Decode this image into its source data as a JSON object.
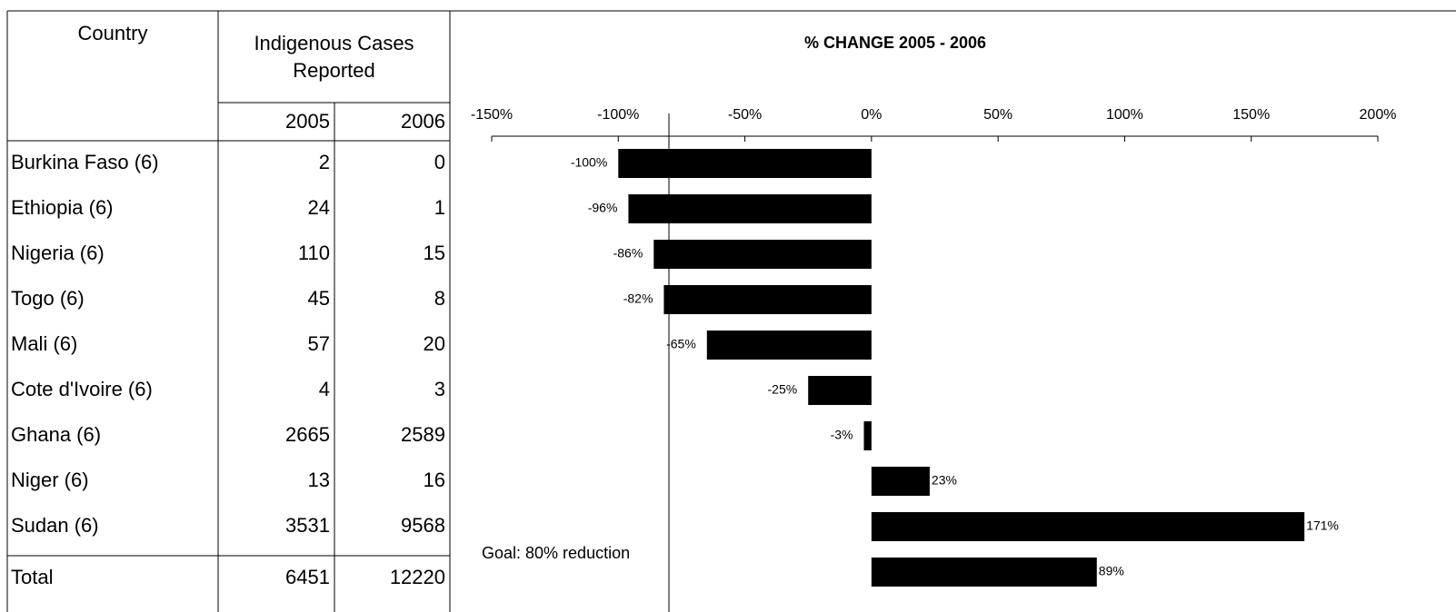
{
  "table": {
    "headers": [
      "Country",
      "Indigenous Cases Reported",
      "2005",
      "2006"
    ],
    "rows": [
      [
        "Burkina Faso (6)",
        2,
        0
      ],
      [
        "Ethiopia (6)",
        24,
        1
      ],
      [
        "Nigeria (6)",
        110,
        15
      ],
      [
        "Togo (6)",
        45,
        8
      ],
      [
        "Mali (6)",
        57,
        20
      ],
      [
        "Cote d'Ivoire (6)",
        4,
        3
      ],
      [
        "Ghana (6)",
        2665,
        2589
      ],
      [
        "Niger (6)",
        13,
        16
      ],
      [
        "Sudan (6)",
        3531,
        9568
      ]
    ],
    "total": [
      "Total",
      6451,
      12220
    ]
  },
  "chart_data": {
    "type": "bar",
    "orientation": "horizontal",
    "title": "% CHANGE 2005 - 2006",
    "values": [
      -100,
      -96,
      -86,
      -82,
      -65,
      -25,
      -3,
      23,
      171,
      89
    ],
    "value_labels": [
      "-100%",
      "-96%",
      "-86%",
      "-82%",
      "-65%",
      "-25%",
      "-3%",
      "23%",
      "171%",
      "89%"
    ],
    "color": "#000000",
    "xlim": [
      -150,
      200
    ],
    "xticks": [
      {
        "value": -150,
        "label": "-150%"
      },
      {
        "value": -100,
        "label": "-100%"
      },
      {
        "value": -50,
        "label": "-50%"
      },
      {
        "value": 0,
        "label": "0%"
      },
      {
        "value": 50,
        "label": "50%"
      },
      {
        "value": 100,
        "label": "100%"
      },
      {
        "value": 150,
        "label": "150%"
      },
      {
        "value": 200,
        "label": "200%"
      }
    ],
    "goal": {
      "value": -80,
      "label": "Goal: 80% reduction"
    }
  }
}
